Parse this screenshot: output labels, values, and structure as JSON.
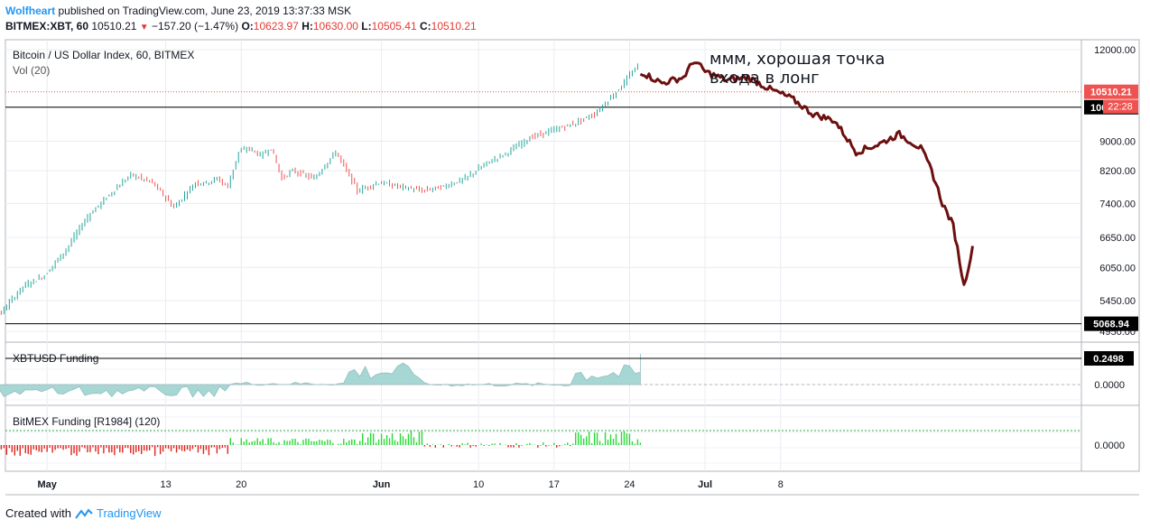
{
  "header": {
    "author": "Wolfheart",
    "published_text": "published on TradingView.com, June 23, 2019 13:37:33 MSK",
    "symbol": "BITMEX:XBT, 60",
    "last": "10510.21",
    "change": "−157.20 (−1.47%)",
    "o_label": "O:",
    "o_value": "10623.97",
    "h_label": "H:",
    "h_value": "10630.00",
    "l_label": "L:",
    "l_value": "10505.41",
    "c_label": "C:",
    "c_value": "10510.21"
  },
  "footer": {
    "created_with": "Created with",
    "brand": "TradingView"
  },
  "colors": {
    "up": "#26a69a",
    "down": "#ef5350",
    "drawn": "#6d0f0f",
    "price_badge": "#ef5350",
    "level_badge": "#000000",
    "funding_fill": "#a7d7d4",
    "funding_neg": "#9fb7de",
    "bitmex_green": "#29d838",
    "bitmex_red": "#e0241b"
  },
  "chart_data": [
    {
      "type": "line",
      "title": "Bitcoin / US Dollar Index, 60, BITMEX",
      "subtitle": "Vol (20)",
      "annotation_line1": "ммм, хорошая точка",
      "annotation_line2": "входа в лонг",
      "x_ticks": [
        "May",
        "13",
        "20",
        "Jun",
        "10",
        "17",
        "24",
        "Jul",
        "8"
      ],
      "y_ticks": [
        "12000.00",
        "10000.00",
        "9000.00",
        "8200.00",
        "7400.00",
        "6650.00",
        "6050.00",
        "5450.00",
        "4950.00"
      ],
      "ylim": [
        4950,
        12000
      ],
      "log_scale": true,
      "last_price": 10510.21,
      "countdown": "22:28",
      "horizontal_levels": [
        10013.84,
        5068.94
      ],
      "historical_series": {
        "name": "",
        "x": [
          -11,
          -9,
          -7,
          -5,
          -3,
          -1,
          1,
          3,
          5,
          7,
          9,
          11,
          12,
          13,
          14,
          15,
          16,
          17,
          18,
          19,
          20,
          22,
          24,
          26,
          28,
          30,
          32,
          34,
          36,
          38,
          40,
          42,
          44,
          46,
          48,
          50,
          52
        ],
        "y": [
          5400,
          5100,
          5250,
          5700,
          5900,
          6400,
          7100,
          7600,
          8100,
          7900,
          7300,
          7900,
          7900,
          8000,
          7800,
          8700,
          8800,
          8600,
          8800,
          8000,
          8200,
          8000,
          8700,
          7700,
          7900,
          7800,
          7700,
          7800,
          8000,
          8400,
          8700,
          9100,
          9300,
          9500,
          9800,
          10500,
          11400
        ]
      },
      "drawn_projection": {
        "name": "",
        "x": [
          52,
          54,
          56,
          57,
          58,
          60,
          62,
          64,
          66,
          68,
          70,
          72,
          74,
          76,
          78,
          79,
          80,
          81,
          82,
          83
        ],
        "y": [
          11200,
          10800,
          11000,
          11600,
          11200,
          10900,
          11000,
          10600,
          10300,
          9800,
          9600,
          8700,
          8900,
          9200,
          8800,
          8200,
          7400,
          6900,
          5700,
          6600
        ]
      }
    },
    {
      "type": "area",
      "title": "XBTUSD Funding",
      "y_ticks": [
        "0.2498",
        "0.0000"
      ],
      "last_value": 0.2498
    },
    {
      "type": "bar",
      "title": "BitMEX Funding [R1984] (120)",
      "y_ticks": [
        "0.0000"
      ]
    }
  ]
}
